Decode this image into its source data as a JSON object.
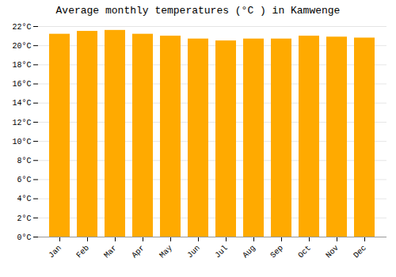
{
  "chart_data": {
    "type": "bar",
    "title": "Average monthly temperatures (°C ) in Kamwenge",
    "categories": [
      "Jan",
      "Feb",
      "Mar",
      "Apr",
      "May",
      "Jun",
      "Jul",
      "Aug",
      "Sep",
      "Oct",
      "Nov",
      "Dec"
    ],
    "values": [
      21.2,
      21.5,
      21.6,
      21.2,
      21.0,
      20.7,
      20.5,
      20.7,
      20.7,
      21.0,
      20.9,
      20.8
    ],
    "color": "#FFAA00",
    "ylim": [
      0,
      22
    ],
    "yticks": [
      {
        "value": 0,
        "label": "0°C"
      },
      {
        "value": 2,
        "label": "2°C"
      },
      {
        "value": 4,
        "label": "4°C"
      },
      {
        "value": 6,
        "label": "6°C"
      },
      {
        "value": 8,
        "label": "8°C"
      },
      {
        "value": 10,
        "label": "10°C"
      },
      {
        "value": 12,
        "label": "12°C"
      },
      {
        "value": 14,
        "label": "14°C"
      },
      {
        "value": 16,
        "label": "16°C"
      },
      {
        "value": 18,
        "label": "18°C"
      },
      {
        "value": 20,
        "label": "20°C"
      },
      {
        "value": 22,
        "label": "22°C"
      }
    ],
    "grid": true
  }
}
